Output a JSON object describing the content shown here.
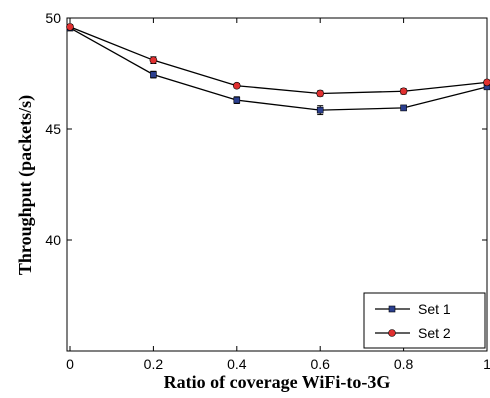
{
  "chart_data": {
    "type": "line",
    "title": "",
    "xlabel": "Ratio of coverage WiFi-to-3G",
    "ylabel": "Throughput (packets/s)",
    "xlim": [
      0,
      1
    ],
    "ylim": [
      35,
      50
    ],
    "xticks": [
      0,
      0.2,
      0.4,
      0.6,
      0.8,
      1
    ],
    "xtick_labels": [
      "0",
      "0.2",
      "0.4",
      "0.6",
      "0.8",
      "1"
    ],
    "yticks": [
      40,
      45,
      50
    ],
    "ytick_labels": [
      "40",
      "45",
      "50"
    ],
    "grid": false,
    "legend_position": "bottom-right",
    "x": [
      0,
      0.2,
      0.4,
      0.6,
      0.8,
      1
    ],
    "series": [
      {
        "name": "Set 1",
        "color": "#2b3f8f",
        "values": [
          49.55,
          47.45,
          46.3,
          45.85,
          45.95,
          46.9
        ],
        "errors": [
          0.12,
          0.15,
          0.15,
          0.2,
          0.1,
          0.1
        ]
      },
      {
        "name": "Set 2",
        "color": "#e03030",
        "values": [
          49.6,
          48.1,
          46.95,
          46.6,
          46.7,
          47.1
        ],
        "errors": [
          0.1,
          0.15,
          0.1,
          0.12,
          0.12,
          0.1
        ]
      }
    ]
  }
}
